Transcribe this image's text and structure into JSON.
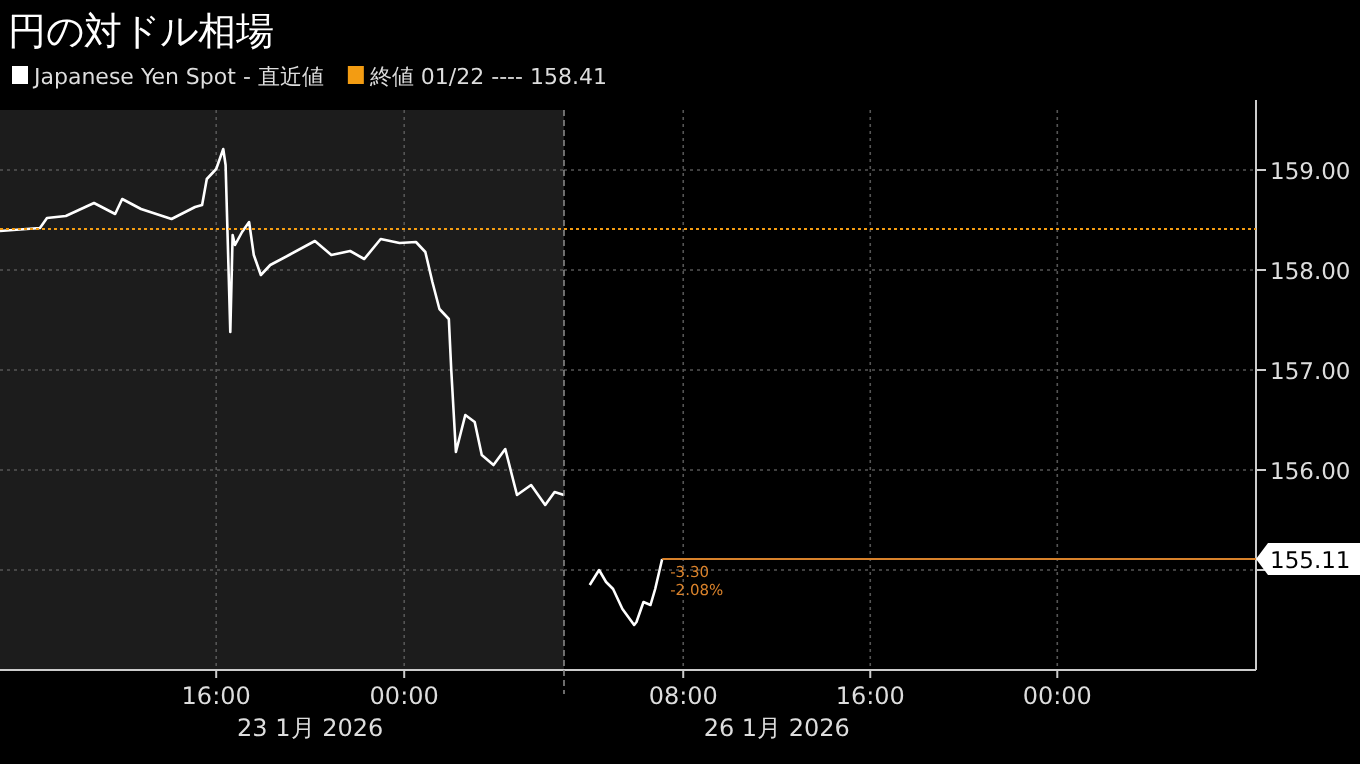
{
  "chart_data": [
    {
      "type": "line",
      "title": "円の対ドル相場",
      "x": [
        6.8,
        8.5,
        8.8,
        9.6,
        10.8,
        11.7,
        12.0,
        12.8,
        14.1,
        15.1,
        15.4,
        15.6,
        16.0,
        16.3,
        16.4,
        16.6,
        16.7,
        16.8,
        17.1,
        17.4,
        17.6,
        17.9,
        18.3,
        19.1,
        20.2,
        20.9,
        21.7,
        22.3,
        23.0,
        23.8,
        24.5,
        24.9,
        25.2,
        25.5,
        25.9,
        26.0,
        26.2,
        26.6,
        27.0,
        27.3,
        27.8,
        28.3,
        28.8,
        29.4,
        30.0,
        30.4,
        30.8
      ],
      "series": [
        {
          "name": "Japanese Yen Spot - 直近値",
          "color": "#ffffff",
          "values": [
            158.39,
            158.42,
            158.52,
            158.54,
            158.67,
            158.56,
            158.71,
            158.61,
            158.51,
            158.63,
            158.65,
            158.91,
            159.01,
            159.21,
            159.05,
            157.38,
            158.35,
            158.25,
            158.38,
            158.48,
            158.15,
            157.95,
            158.05,
            158.15,
            158.29,
            158.15,
            158.19,
            158.11,
            158.31,
            158.27,
            158.28,
            158.18,
            157.88,
            157.61,
            157.51,
            157.01,
            156.18,
            156.55,
            156.48,
            156.15,
            156.05,
            156.21,
            155.75,
            155.85,
            155.65,
            155.78,
            155.75
          ]
        }
      ],
      "xlim": [
        6.8,
        30.8
      ],
      "ylim": [
        154,
        159.6
      ],
      "xticks": [
        {
          "value": 16,
          "label": "16:00"
        },
        {
          "value": 24,
          "label": "00:00"
        }
      ],
      "yticks": [
        155,
        156,
        157,
        158,
        159
      ],
      "tick_labels": "x",
      "ref_lines": [
        {
          "axis": "y",
          "value": 158.41,
          "label": "終値 01/22 ---- 158.41",
          "color": "#f39c12",
          "line_style": "dotted"
        }
      ],
      "bands": [
        {
          "axis": "x",
          "from": 6.8,
          "to": 30.8,
          "color": "#1c1c1c"
        }
      ],
      "annotations": [
        "23 1月 2026"
      ],
      "grid": true,
      "legend": "top left"
    },
    {
      "type": "line",
      "x": [
        4.0,
        4.4,
        4.7,
        5.0,
        5.4,
        5.9,
        6.0,
        6.3,
        6.6,
        6.8,
        7.1
      ],
      "series": [
        {
          "color": "#ffffff",
          "values": [
            154.85,
            155.0,
            154.88,
            154.81,
            154.61,
            154.45,
            154.48,
            154.68,
            154.65,
            154.81,
            155.11
          ]
        }
      ],
      "xlim": [
        2.9,
        32.5
      ],
      "ylim": [
        154,
        159.6
      ],
      "xticks": [
        {
          "value": 8,
          "label": "08:00"
        },
        {
          "value": 16,
          "label": "16:00"
        },
        {
          "value": 24,
          "label": "00:00"
        }
      ],
      "yticks": [
        {
          "value": 155,
          "label": null
        },
        {
          "value": 156,
          "label": "156.00"
        },
        {
          "value": 157,
          "label": "157.00"
        },
        {
          "value": 158,
          "label": "158.00"
        },
        {
          "value": 159,
          "label": "159.00"
        }
      ],
      "ref_lines": [
        {
          "axis": "y",
          "value": 158.41,
          "color": "#f39c12",
          "line_style": "dotted"
        },
        {
          "axis": "y",
          "value": 155.11,
          "label": "155.11",
          "color": "#d9822b",
          "line_style": "solid"
        }
      ],
      "annotations": [
        "26 1月 2026",
        "-3.30",
        "-2.08%"
      ],
      "grid": true
    }
  ]
}
